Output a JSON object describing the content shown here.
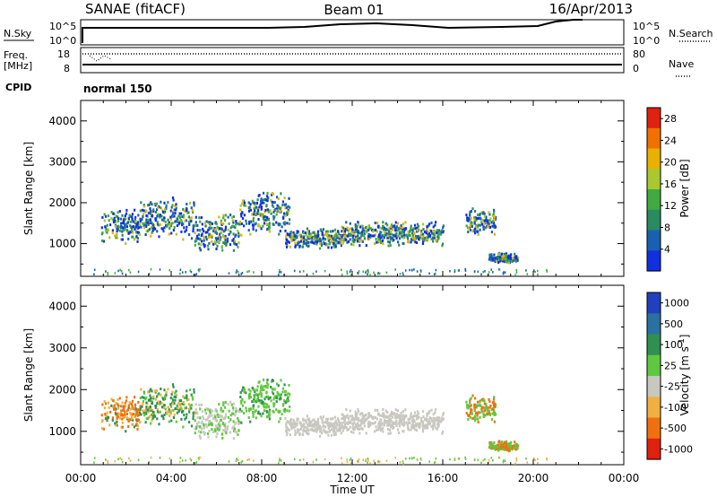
{
  "header": {
    "station": "SANAE (fitACF)",
    "beam": "Beam 01",
    "date": "16/Apr/2013"
  },
  "status_panel": {
    "nsky_label": "N.Sky",
    "nsky_ticks": [
      "10^5",
      "10^0"
    ],
    "nsearch_label": "N.Search",
    "nsearch_ticks": [
      "10^5",
      "10^0"
    ],
    "freq_label_1": "Freq.",
    "freq_label_2": "[MHz]",
    "freq_ticks": [
      "18",
      "8"
    ],
    "nave_label": "Nave",
    "nave_ticks": [
      "80",
      "0"
    ],
    "cpid_label": "CPID",
    "cpid_value": "normal 150"
  },
  "chart_data": [
    {
      "type": "heatmap",
      "name": "power",
      "ylabel": "Slant Range [km]",
      "yticks": [
        "1000",
        "2000",
        "3000",
        "4000"
      ],
      "ylim": [
        200,
        4500
      ],
      "colorbar_label": "Power [dB]",
      "colorbar_ticks": [
        "4",
        "8",
        "12",
        "16",
        "20",
        "24",
        "28"
      ],
      "colorbar_range": [
        0,
        30
      ],
      "colors": [
        "#1030e0",
        "#1a60b0",
        "#2a8a60",
        "#40aa40",
        "#a8c830",
        "#e8b000",
        "#f07000",
        "#e02010"
      ],
      "echo_regions": [
        {
          "t_start": 0.9,
          "t_end": 2.6,
          "r_min": 1000,
          "r_max": 1900
        },
        {
          "t_start": 2.6,
          "t_end": 5.0,
          "r_min": 1100,
          "r_max": 2200
        },
        {
          "t_start": 5.0,
          "t_end": 7.0,
          "r_min": 800,
          "r_max": 1800
        },
        {
          "t_start": 7.0,
          "t_end": 9.2,
          "r_min": 1200,
          "r_max": 2350
        },
        {
          "t_start": 9.0,
          "t_end": 11.5,
          "r_min": 900,
          "r_max": 1400
        },
        {
          "t_start": 11.5,
          "t_end": 16.0,
          "r_min": 950,
          "r_max": 1600
        },
        {
          "t_start": 17.0,
          "t_end": 18.3,
          "r_min": 1200,
          "r_max": 1900
        },
        {
          "t_start": 18.0,
          "t_end": 19.3,
          "r_min": 550,
          "r_max": 800
        }
      ]
    },
    {
      "type": "heatmap",
      "name": "velocity",
      "ylabel": "Slant Range [km]",
      "yticks": [
        "1000",
        "2000",
        "3000",
        "4000"
      ],
      "ylim": [
        200,
        4500
      ],
      "colorbar_label": "Velocity [m s^-1]",
      "colorbar_ticks": [
        "1000",
        "500",
        "100",
        "25",
        "-25",
        "-100",
        "-500",
        "-1000"
      ],
      "colorbar_range": [
        -1250,
        1250
      ],
      "colors": [
        "#2040c0",
        "#2a70a0",
        "#309050",
        "#60c840",
        "#c8c8c0",
        "#f0b040",
        "#f07010",
        "#e02010"
      ],
      "ground_scatter_color": "#c8c8c0"
    }
  ],
  "x_axis": {
    "label": "Time UT",
    "ticks": [
      "00:00",
      "04:00",
      "08:00",
      "12:00",
      "16:00",
      "20:00",
      "00:00"
    ],
    "range_hours": [
      0,
      24
    ]
  }
}
